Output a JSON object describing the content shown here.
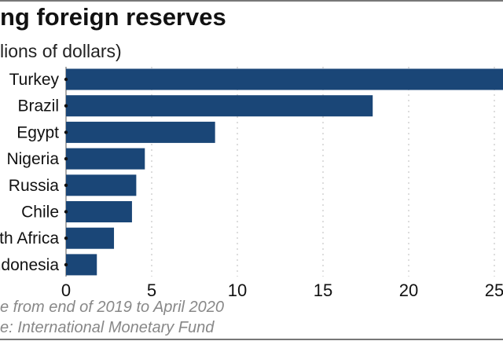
{
  "chart_data": {
    "type": "bar",
    "orientation": "horizontal",
    "title": "ng foreign reserves",
    "subtitle": "lions of dollars)",
    "categories": [
      "Turkey",
      "Brazil",
      "Egypt",
      "Nigeria",
      "Russia",
      "Chile",
      "South Africa",
      "Indonesia"
    ],
    "values": [
      26.5,
      17.9,
      8.7,
      4.6,
      4.1,
      3.85,
      2.8,
      1.8
    ],
    "xlim": [
      0,
      25.9
    ],
    "xticks": [
      "0",
      "5",
      "10",
      "15",
      "20",
      "25"
    ],
    "grid": "vertical dotted",
    "notes": [
      "e from end of 2019 to April 2020",
      "e: International Monetary Fund"
    ],
    "bar_color": "#1a4677"
  }
}
